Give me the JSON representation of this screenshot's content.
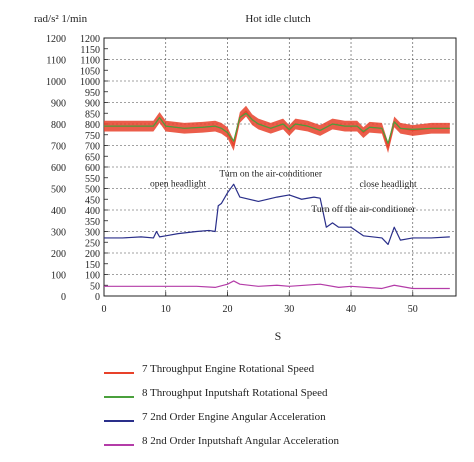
{
  "chart_data": {
    "type": "line",
    "title": "Hot idle clutch",
    "xlabel": "S",
    "y_unit_label": "rad/s² 1/min",
    "xlim": [
      0,
      57
    ],
    "ylim": [
      0,
      1200
    ],
    "x_ticks": [
      0,
      10,
      20,
      30,
      40,
      50
    ],
    "y_ticks": [
      0,
      50,
      100,
      150,
      200,
      250,
      300,
      350,
      400,
      450,
      500,
      550,
      600,
      650,
      700,
      750,
      800,
      850,
      900,
      950,
      1000,
      1050,
      1100,
      1150,
      1200
    ],
    "grid": true,
    "annotations": [
      {
        "text": "open headlight",
        "x": 12,
        "y": 510
      },
      {
        "text": "Turn on the air-conditioner",
        "x": 27,
        "y": 555
      },
      {
        "text": "close headlight",
        "x": 46,
        "y": 508
      },
      {
        "text": "Turn off the air-conditioner",
        "x": 42,
        "y": 390
      }
    ],
    "series": [
      {
        "name": "7 Throughput Engine Rotational Speed",
        "color": "#e8412a",
        "band": 25,
        "x": [
          0,
          3,
          6,
          8,
          9,
          10,
          13,
          16,
          18,
          19,
          20,
          21,
          22,
          23,
          24,
          25,
          27,
          29,
          30,
          31,
          33,
          35,
          37,
          39,
          41,
          42,
          43,
          45,
          46,
          47,
          48,
          50,
          53,
          56
        ],
        "values": [
          790,
          790,
          790,
          790,
          830,
          790,
          780,
          785,
          790,
          780,
          760,
          700,
          830,
          860,
          820,
          800,
          780,
          800,
          770,
          800,
          790,
          770,
          800,
          790,
          790,
          760,
          785,
          780,
          690,
          810,
          780,
          770,
          780,
          780
        ]
      },
      {
        "name": "8 Throughput Inputshaft Rotational Speed",
        "color": "#4aa03c",
        "x": [
          0,
          3,
          6,
          8,
          9,
          10,
          13,
          16,
          18,
          19,
          20,
          21,
          22,
          23,
          24,
          25,
          27,
          29,
          30,
          31,
          33,
          35,
          37,
          39,
          41,
          42,
          43,
          45,
          46,
          47,
          48,
          50,
          53,
          56
        ],
        "values": [
          790,
          790,
          790,
          790,
          830,
          790,
          780,
          785,
          790,
          780,
          760,
          720,
          830,
          850,
          820,
          800,
          780,
          800,
          775,
          800,
          790,
          770,
          800,
          790,
          790,
          765,
          785,
          780,
          710,
          810,
          780,
          775,
          780,
          780
        ]
      },
      {
        "name": "7 2nd Order Engine Angular Acceleration",
        "color": "#2a2f8a",
        "x": [
          0,
          3,
          6,
          8,
          8.5,
          9,
          10,
          12,
          15,
          17,
          18,
          18.5,
          19,
          20,
          21,
          22,
          25,
          28,
          30,
          32,
          34,
          35,
          36,
          37,
          38,
          40,
          42,
          45,
          46,
          47,
          48,
          50,
          53,
          56
        ],
        "values": [
          270,
          270,
          275,
          270,
          300,
          275,
          280,
          290,
          300,
          305,
          300,
          420,
          430,
          480,
          520,
          460,
          440,
          460,
          470,
          450,
          460,
          455,
          320,
          340,
          320,
          320,
          280,
          270,
          240,
          320,
          260,
          270,
          270,
          275
        ]
      },
      {
        "name": "8 2nd Order Inputshaft Angular Acceleration",
        "color": "#b43ca8",
        "x": [
          0,
          5,
          10,
          15,
          18,
          20,
          21,
          22,
          25,
          28,
          30,
          35,
          38,
          40,
          45,
          47,
          50,
          53,
          56
        ],
        "values": [
          45,
          45,
          45,
          45,
          40,
          55,
          70,
          55,
          45,
          50,
          45,
          55,
          40,
          45,
          35,
          50,
          35,
          35,
          35
        ]
      }
    ]
  }
}
